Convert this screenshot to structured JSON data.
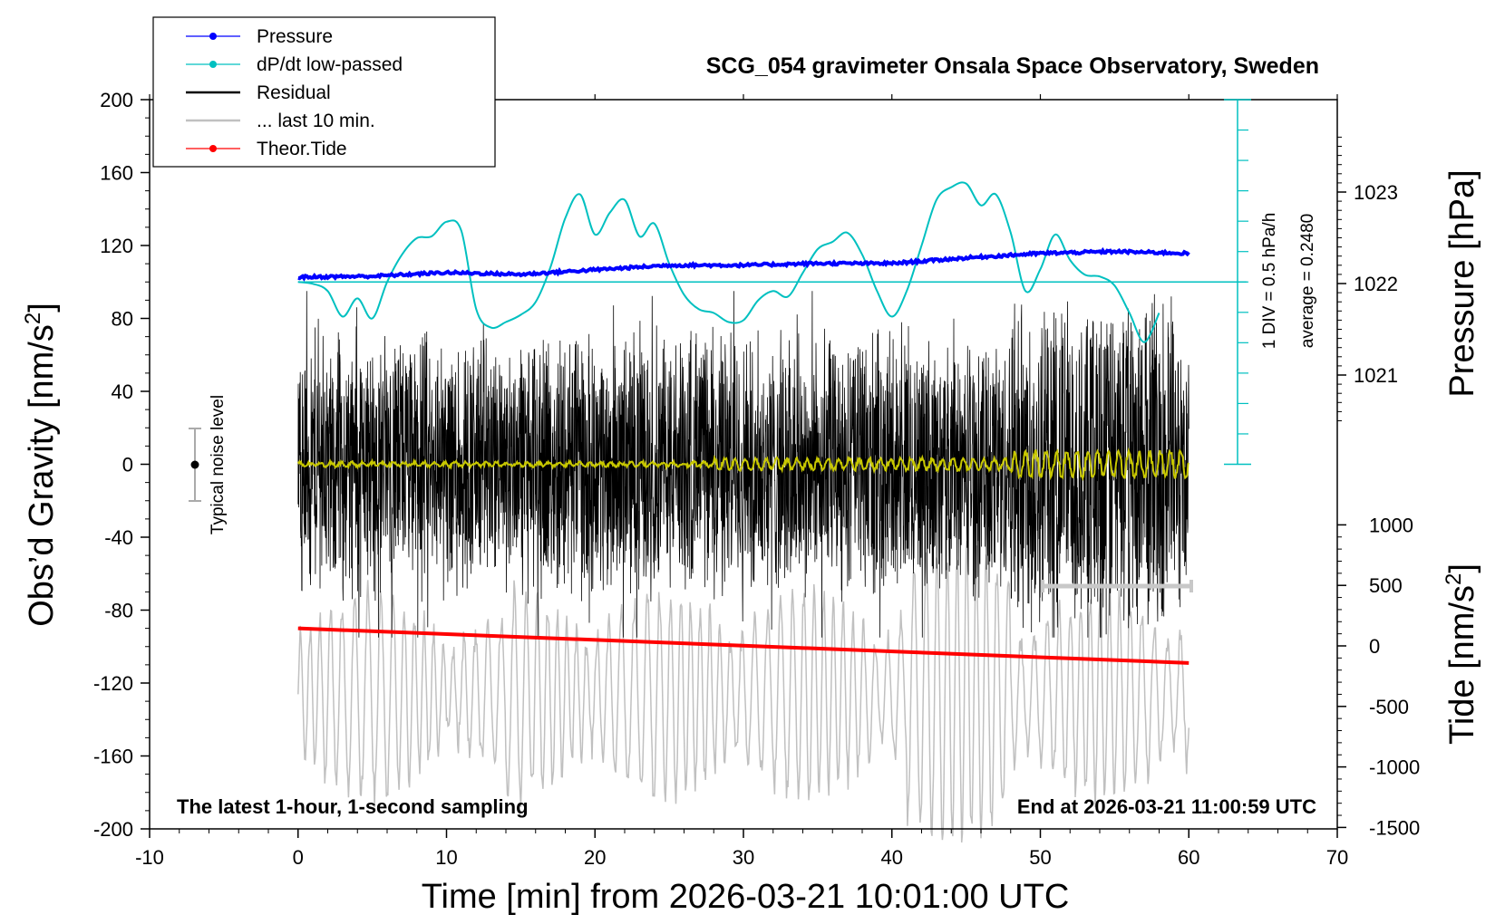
{
  "title": "SCG_054 gravimeter Onsala Space Observatory, Sweden",
  "note_left": "The latest 1-hour, 1-second sampling",
  "note_right": "End at 2026-03-21 11:00:59 UTC",
  "noise_label": "Typical noise level",
  "scale_label_1": "1 DIV = 0.5 hPa/h",
  "scale_label_2": "average = 0.2480",
  "axes": {
    "xlabel": "Time [min] from 2026-03-21 10:01:00 UTC",
    "ylabel_prefix": "Obs’d Gravity [nm/s",
    "ylabel_sup": "2",
    "ylabel_suffix": "]",
    "y2label": "Pressure [hPa]",
    "y3label_prefix": "Tide [nm/s",
    "y3label_sup": "2",
    "y3label_suffix": "]"
  },
  "legend": [
    {
      "label": "Pressure",
      "color": "#0000ff",
      "marker": true
    },
    {
      "label": "dP/dt low-passed",
      "color": "#00c0c0",
      "marker": true
    },
    {
      "label": "Residual",
      "color": "#000000",
      "marker": false
    },
    {
      "label": "... last 10 min.",
      "color": "#c0c0c0",
      "marker": false
    },
    {
      "label": "Theor.Tide",
      "color": "#ff0000",
      "marker": true
    }
  ],
  "chart_data": {
    "type": "line",
    "xlim": [
      -10,
      70
    ],
    "ylim": [
      -200,
      200
    ],
    "x_ticks": [
      "-10",
      "0",
      "10",
      "20",
      "30",
      "40",
      "50",
      "60",
      "70"
    ],
    "y_ticks": [
      "-200",
      "-160",
      "-120",
      "-80",
      "-40",
      "0",
      "40",
      "80",
      "120",
      "160",
      "200"
    ],
    "pressure_axis": {
      "ticks": [
        "1021",
        "1022",
        "1023"
      ]
    },
    "tide_axis": {
      "ylim": [
        -1500,
        1000
      ],
      "ticks": [
        "-1500",
        "-1000",
        "-500",
        "0",
        "500",
        "1000"
      ]
    },
    "series": [
      {
        "name": "Pressure",
        "unit": "hPa",
        "color": "#0000ff",
        "x": [
          0,
          5,
          10,
          15,
          20,
          25,
          30,
          35,
          40,
          45,
          50,
          55,
          60
        ],
        "values": [
          1022.07,
          1022.08,
          1022.12,
          1022.1,
          1022.15,
          1022.2,
          1022.2,
          1022.22,
          1022.22,
          1022.28,
          1022.33,
          1022.35,
          1022.33
        ]
      },
      {
        "name": "dP/dt low-passed",
        "color": "#00c0c0",
        "x": [
          0,
          1,
          2,
          3,
          4,
          5,
          6,
          7,
          8,
          9,
          10,
          11,
          12,
          13,
          14,
          15,
          16,
          17,
          18,
          19,
          20,
          21,
          22,
          23,
          24,
          25,
          26,
          27,
          28,
          29,
          30,
          31,
          32,
          33,
          34,
          35,
          36,
          37,
          38,
          39,
          40,
          41,
          42,
          43,
          44,
          45,
          46,
          47,
          48,
          49,
          50,
          51,
          52,
          53,
          54,
          55,
          56,
          57,
          58
        ],
        "values": [
          100,
          99,
          95,
          81,
          91,
          80,
          100,
          115,
          124,
          125,
          133,
          128,
          85,
          75,
          78,
          82,
          89,
          108,
          135,
          148,
          126,
          138,
          145,
          125,
          132,
          110,
          93,
          85,
          83,
          78,
          79,
          90,
          95,
          92,
          105,
          118,
          122,
          127,
          115,
          95,
          81,
          95,
          120,
          145,
          152,
          154,
          142,
          148,
          127,
          95,
          107,
          126,
          112,
          104,
          103,
          98,
          83,
          67,
          83
        ]
      },
      {
        "name": "Residual",
        "color": "#000000"
      },
      {
        "name": "... last 10 min.",
        "color": "#c0c0c0"
      },
      {
        "name": "Theor.Tide",
        "unit": "nm/s2",
        "color": "#ff0000",
        "x": [
          0,
          60
        ],
        "values": [
          -90,
          -109
        ]
      }
    ]
  }
}
